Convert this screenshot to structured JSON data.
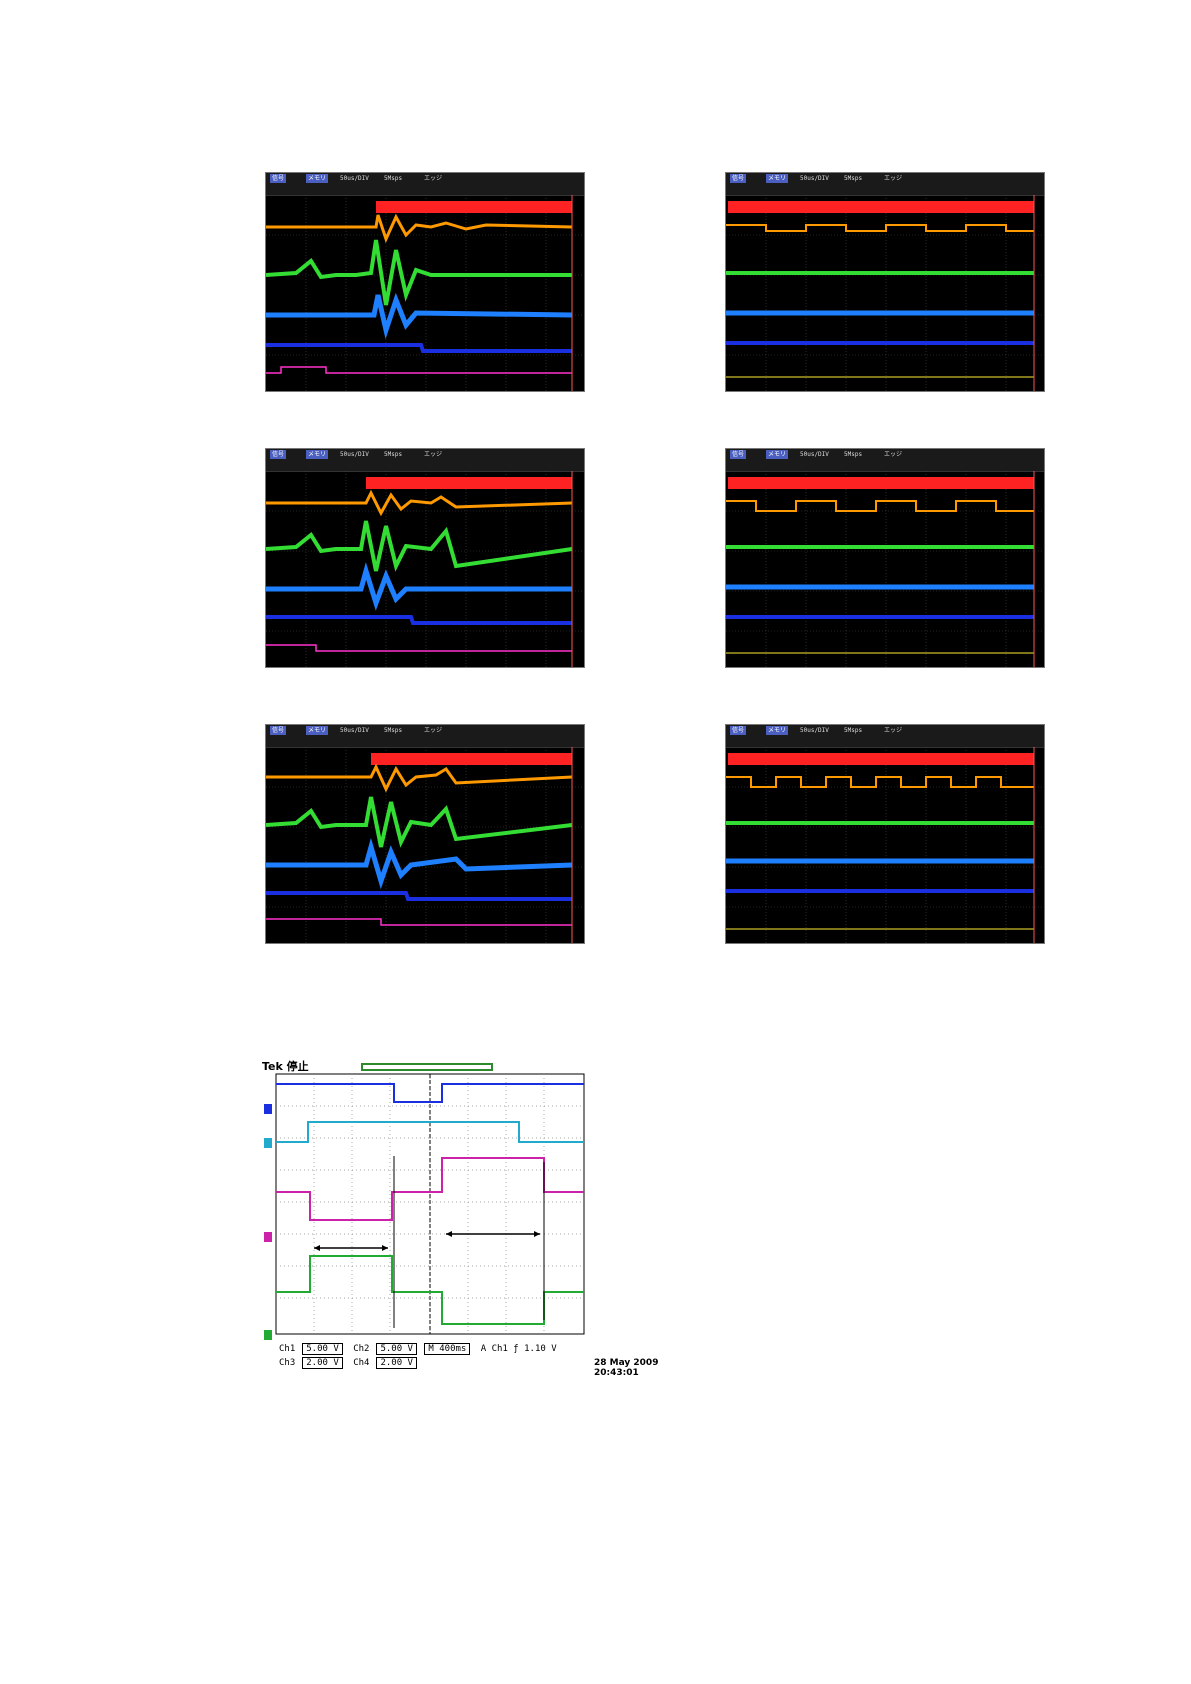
{
  "oscilloscopes": [
    {
      "id": "scope-1",
      "status": {
        "left_tags": [
          "信号",
          "メモリ"
        ],
        "timebase": "50us/DIV",
        "rate": "5Msps",
        "mode": "エッジ",
        "stamp": ""
      }
    },
    {
      "id": "scope-2",
      "status": {
        "left_tags": [
          "信号",
          "メモリ"
        ],
        "timebase": "50us/DIV",
        "rate": "5Msps",
        "mode": "エッジ",
        "stamp": ""
      }
    },
    {
      "id": "scope-3",
      "status": {
        "left_tags": [
          "信号",
          "メモリ"
        ],
        "timebase": "50us/DIV",
        "rate": "5Msps",
        "mode": "エッジ",
        "stamp": ""
      }
    },
    {
      "id": "scope-4",
      "status": {
        "left_tags": [
          "信号",
          "メモリ"
        ],
        "timebase": "50us/DIV",
        "rate": "5Msps",
        "mode": "エッジ",
        "stamp": ""
      }
    },
    {
      "id": "scope-5",
      "status": {
        "left_tags": [
          "信号",
          "メモリ"
        ],
        "timebase": "50us/DIV",
        "rate": "5Msps",
        "mode": "エッジ",
        "stamp": ""
      }
    },
    {
      "id": "scope-6",
      "status": {
        "left_tags": [
          "信号",
          "メモリ"
        ],
        "timebase": "50us/DIV",
        "rate": "5Msps",
        "mode": "エッジ",
        "stamp": ""
      }
    }
  ],
  "tek": {
    "brand": "Tek 停止",
    "ch1": "Ch1",
    "ch1_scale": "5.00 V",
    "ch2": "Ch2",
    "ch2_scale": "5.00 V",
    "ch3": "Ch3",
    "ch3_scale": "2.00 V",
    "ch4": "Ch4",
    "ch4_scale": "2.00 V",
    "timebase": "M 400ms",
    "trigger": "A  Ch1  ƒ   1.10 V",
    "date": "28 May 2009",
    "time": "20:43:01"
  },
  "colors": {
    "red": "#ff2222",
    "orange": "#ff9900",
    "green": "#33dd33",
    "blue": "#1e7fff",
    "navy": "#1a2fe0",
    "magenta": "#ff33cc",
    "yellow": "#ffee33"
  }
}
